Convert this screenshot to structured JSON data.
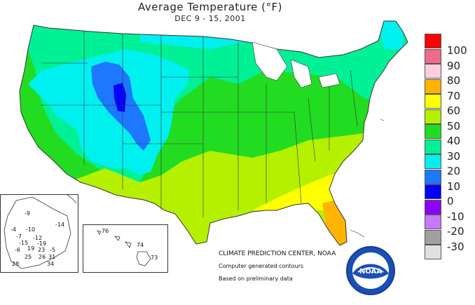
{
  "map": {
    "title": "Average Temperature (°F)",
    "subtitle": "DEC 9 - 15, 2001",
    "credits": {
      "center": "CLIMATE PREDICTION CENTER, NOAA",
      "line1": "Computer generated contours",
      "line2": "Based on preliminary data"
    },
    "logo_text": "NOAA",
    "legend": [
      {
        "label": "100",
        "color": "#ff0000"
      },
      {
        "label": "90",
        "color": "#f06a8a"
      },
      {
        "label": "80",
        "color": "#ffcde0"
      },
      {
        "label": "70",
        "color": "#ffb400"
      },
      {
        "label": "60",
        "color": "#ffff00"
      },
      {
        "label": "50",
        "color": "#b4f000"
      },
      {
        "label": "40",
        "color": "#22dc22"
      },
      {
        "label": "30",
        "color": "#00f096"
      },
      {
        "label": "20",
        "color": "#00f0f0"
      },
      {
        "label": "10",
        "color": "#1e78ff"
      },
      {
        "label": "0",
        "color": "#0000ff"
      },
      {
        "label": "-10",
        "color": "#8c00ff"
      },
      {
        "label": "-20",
        "color": "#c878ff"
      },
      {
        "label": "-30",
        "color": "#a0a0a0"
      }
    ],
    "legend_extra_color": "#e0e0e0",
    "alaska_stations": [
      "-9",
      "-14",
      "-4",
      "-10",
      "-7",
      "-12",
      "-15",
      "-19",
      "-6",
      "19",
      "23",
      "-5",
      "25",
      "26",
      "31",
      "28",
      "34"
    ],
    "hawaii_stations": [
      "76",
      "74",
      "73"
    ]
  }
}
